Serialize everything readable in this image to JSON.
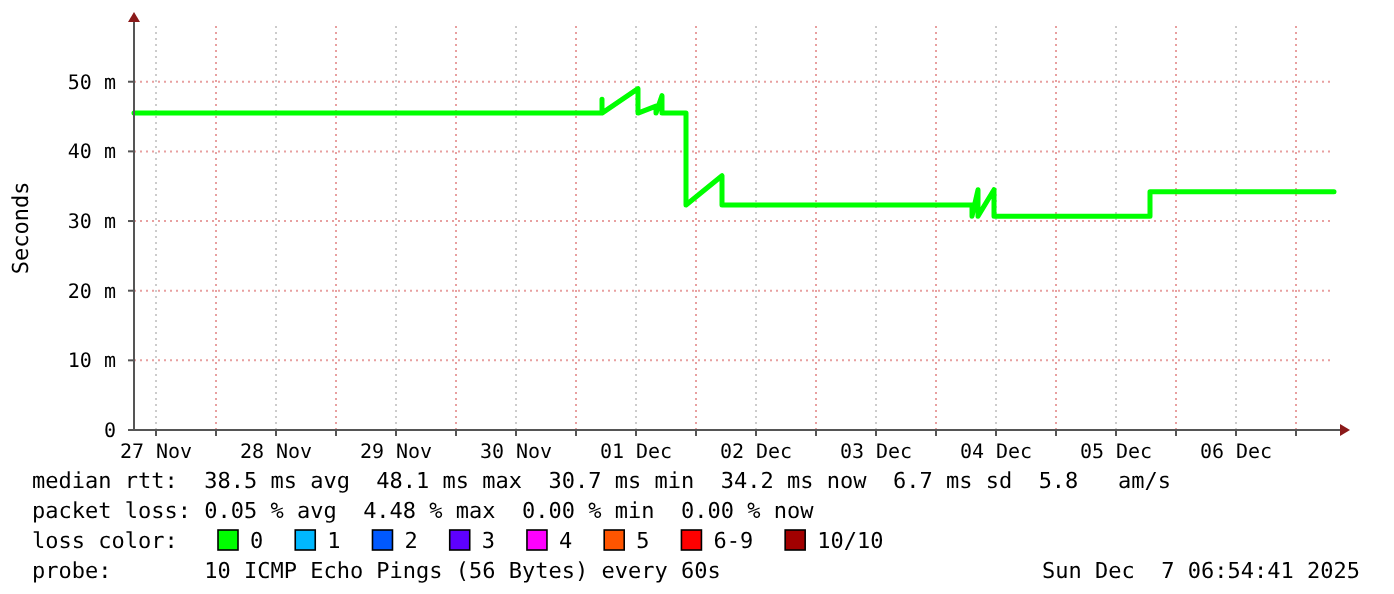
{
  "chart_data": {
    "type": "line",
    "ylabel": "Seconds",
    "legend_title": "loss color:",
    "legend": "bottom",
    "grid": true,
    "marker": "none",
    "line_style": "solid",
    "xlim": [
      "2025-11-27T07:36",
      "2025-12-07T07:36"
    ],
    "xticks": [
      {
        "value": "2025-11-27T12:00",
        "label": "27 Nov"
      },
      {
        "value": "2025-11-28T00:00",
        "label": null
      },
      {
        "value": "2025-11-28T12:00",
        "label": "28 Nov"
      },
      {
        "value": "2025-11-29T00:00",
        "label": null
      },
      {
        "value": "2025-11-29T12:00",
        "label": "29 Nov"
      },
      {
        "value": "2025-11-30T00:00",
        "label": null
      },
      {
        "value": "2025-11-30T12:00",
        "label": "30 Nov"
      },
      {
        "value": "2025-12-01T00:00",
        "label": null
      },
      {
        "value": "2025-12-01T12:00",
        "label": "01 Dec"
      },
      {
        "value": "2025-12-02T00:00",
        "label": null
      },
      {
        "value": "2025-12-02T12:00",
        "label": "02 Dec"
      },
      {
        "value": "2025-12-03T00:00",
        "label": null
      },
      {
        "value": "2025-12-03T12:00",
        "label": "03 Dec"
      },
      {
        "value": "2025-12-04T00:00",
        "label": null
      },
      {
        "value": "2025-12-04T12:00",
        "label": "04 Dec"
      },
      {
        "value": "2025-12-05T00:00",
        "label": null
      },
      {
        "value": "2025-12-05T12:00",
        "label": "05 Dec"
      },
      {
        "value": "2025-12-06T00:00",
        "label": null
      },
      {
        "value": "2025-12-06T12:00",
        "label": "06 Dec"
      },
      {
        "value": "2025-12-07T00:00",
        "label": null
      }
    ],
    "ylim": [
      0,
      58
    ],
    "yticks": [
      0,
      {
        "value": 10,
        "label": "10 m"
      },
      {
        "value": 20,
        "label": "20 m"
      },
      {
        "value": 30,
        "label": "30 m"
      },
      {
        "value": 40,
        "label": "40 m"
      },
      {
        "value": 50,
        "label": "50 m"
      }
    ],
    "x": [
      "2025-11-27T07:36",
      "2025-12-01T05:12",
      "2025-12-01T05:12",
      "2025-12-01T05:12",
      "2025-12-01T12:24",
      "2025-12-01T12:24",
      "2025-12-01T16:00",
      "2025-12-01T16:00",
      "2025-12-01T17:12",
      "2025-12-01T17:12",
      "2025-12-01T22:00",
      "2025-12-01T22:00",
      "2025-12-02T05:12",
      "2025-12-02T05:12",
      "2025-12-04T07:12",
      "2025-12-04T07:12",
      "2025-12-04T08:24",
      "2025-12-04T08:24",
      "2025-12-04T11:36",
      "2025-12-04T11:36",
      "2025-12-05T18:48",
      "2025-12-05T18:48",
      "2025-12-07T07:36"
    ],
    "series": [
      {
        "name": "0",
        "color": "#00ff00",
        "values": [
          45.5,
          45.5,
          47.5,
          45.5,
          49.0,
          45.5,
          46.5,
          45.5,
          48.0,
          45.5,
          45.5,
          32.3,
          36.5,
          32.3,
          32.3,
          30.7,
          34.5,
          30.7,
          34.5,
          30.7,
          30.7,
          34.2,
          34.2
        ]
      },
      {
        "name": "1",
        "color": "#00b8ff",
        "values": [
          null,
          null,
          null,
          null,
          null,
          null,
          null,
          null,
          null,
          null,
          null,
          null,
          null,
          null,
          null,
          null,
          null,
          null,
          null,
          null,
          null,
          null,
          null
        ]
      },
      {
        "name": "2",
        "color": "#0059ff",
        "values": [
          null,
          null,
          null,
          null,
          null,
          null,
          null,
          null,
          null,
          null,
          null,
          null,
          null,
          null,
          null,
          null,
          null,
          null,
          null,
          null,
          null,
          null,
          null
        ]
      },
      {
        "name": "3",
        "color": "#5e00ff",
        "values": [
          null,
          null,
          null,
          null,
          null,
          null,
          null,
          null,
          null,
          null,
          null,
          null,
          null,
          null,
          null,
          null,
          null,
          null,
          null,
          null,
          null,
          null,
          null
        ]
      },
      {
        "name": "4",
        "color": "#ff00ff",
        "values": [
          null,
          null,
          null,
          null,
          null,
          null,
          null,
          null,
          null,
          null,
          null,
          null,
          null,
          null,
          null,
          null,
          null,
          null,
          null,
          null,
          null,
          null,
          null
        ]
      },
      {
        "name": "5",
        "color": "#ff5500",
        "values": [
          null,
          null,
          null,
          null,
          null,
          null,
          null,
          null,
          null,
          null,
          null,
          null,
          null,
          null,
          null,
          null,
          null,
          null,
          null,
          null,
          null,
          null,
          null
        ]
      },
      {
        "name": "6-9",
        "color": "#ff0000",
        "values": [
          null,
          null,
          null,
          null,
          null,
          null,
          null,
          null,
          null,
          null,
          null,
          null,
          null,
          null,
          null,
          null,
          null,
          null,
          null,
          null,
          null,
          null,
          null
        ]
      },
      {
        "name": "10/10",
        "color": "#a10000",
        "values": [
          null,
          null,
          null,
          null,
          null,
          null,
          null,
          null,
          null,
          null,
          null,
          null,
          null,
          null,
          null,
          null,
          null,
          null,
          null,
          null,
          null,
          null,
          null
        ]
      }
    ],
    "annotations": [
      "median rtt:  38.5 ms avg  48.1 ms max  30.7 ms min  34.2 ms now  6.7 ms sd  5.8   am/s",
      "packet loss: 0.05 % avg  4.48 % max  0.00 % min  0.00 % now",
      "probe:       10 ICMP Echo Pings (56 Bytes) every 60s",
      "Sun Dec  7 06:54:41 2025"
    ]
  }
}
